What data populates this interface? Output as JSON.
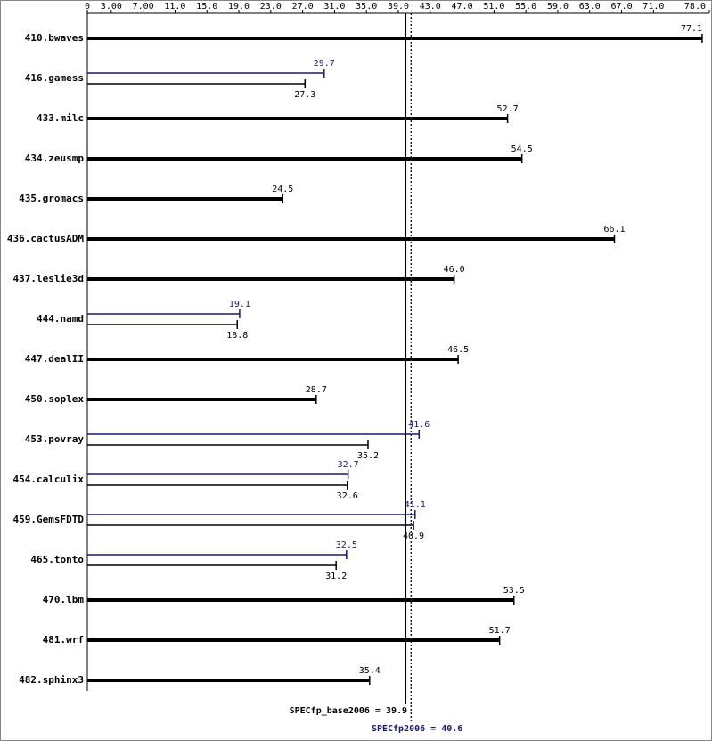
{
  "chart_data": {
    "type": "bar",
    "orientation": "horizontal",
    "categories": [
      "410.bwaves",
      "416.gamess",
      "433.milc",
      "434.zeusmp",
      "435.gromacs",
      "436.cactusADM",
      "437.leslie3d",
      "444.namd",
      "447.dealII",
      "450.soplex",
      "453.povray",
      "454.calculix",
      "459.GemsFDTD",
      "465.tonto",
      "470.lbm",
      "481.wrf",
      "482.sphinx3"
    ],
    "series": [
      {
        "color": "#000000",
        "values": [
          77.1,
          27.3,
          52.7,
          54.5,
          24.5,
          66.1,
          46.0,
          18.8,
          46.5,
          28.7,
          35.2,
          32.6,
          40.9,
          31.2,
          53.5,
          51.7,
          35.4
        ],
        "value_labels": [
          "77.1",
          "27.3",
          "52.7",
          "54.5",
          "24.5",
          "66.1",
          "46.0",
          "18.8",
          "46.5",
          "28.7",
          "35.2",
          "32.6",
          "40.9",
          "31.2",
          "53.5",
          "51.7",
          "35.4"
        ]
      },
      {
        "color": "#191970",
        "values": [
          null,
          29.7,
          null,
          null,
          null,
          null,
          null,
          19.1,
          null,
          null,
          41.6,
          32.7,
          41.1,
          32.5,
          null,
          null,
          null
        ],
        "value_labels": [
          null,
          "29.7",
          null,
          null,
          null,
          null,
          null,
          "19.1",
          null,
          null,
          "41.6",
          "32.7",
          "41.1",
          "32.5",
          null,
          null,
          null
        ]
      }
    ],
    "xlim": [
      0,
      78
    ],
    "xticks": [
      0,
      {
        "value": 3,
        "label": "3.00"
      },
      {
        "value": 7,
        "label": "7.00"
      },
      {
        "value": 11,
        "label": "11.0"
      },
      {
        "value": 15,
        "label": "15.0"
      },
      {
        "value": 19,
        "label": "19.0"
      },
      {
        "value": 23,
        "label": "23.0"
      },
      {
        "value": 27,
        "label": "27.0"
      },
      {
        "value": 31,
        "label": "31.0"
      },
      {
        "value": 35,
        "label": "35.0"
      },
      {
        "value": 39,
        "label": "39.0"
      },
      {
        "value": 43,
        "label": "43.0"
      },
      {
        "value": 47,
        "label": "47.0"
      },
      {
        "value": 51,
        "label": "51.0"
      },
      {
        "value": 55,
        "label": "55.0"
      },
      {
        "value": 59,
        "label": "59.0"
      },
      {
        "value": 63,
        "label": "63.0"
      },
      {
        "value": 67,
        "label": "67.0"
      },
      {
        "value": 71,
        "label": "71.0"
      },
      {
        "value": 78,
        "label": "78.0"
      }
    ],
    "reference_lines": [
      {
        "value": 39.9,
        "label": "SPECfp_base2006 = 39.9",
        "color": "#000000",
        "style": "solid"
      },
      {
        "value": 40.6,
        "label": "SPECfp2006 = 40.6",
        "color": "#191970",
        "style": "dotted"
      }
    ]
  }
}
